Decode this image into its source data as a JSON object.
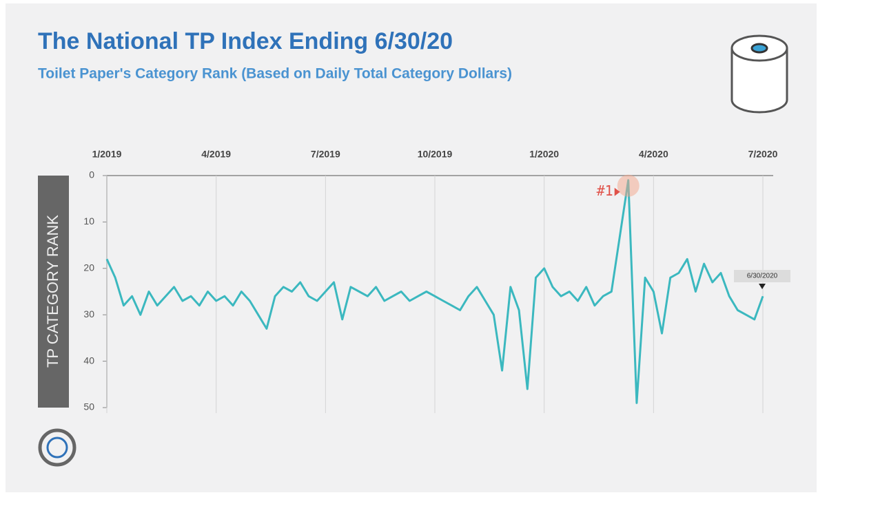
{
  "chart_data": {
    "type": "line",
    "title": "The National TP Index Ending 6/30/20",
    "subtitle": "Toilet Paper's Category Rank (Based on Daily Total Category Dollars)",
    "y_label": "TP CATEGORY RANK",
    "categories": [
      "1/2019",
      null,
      null,
      null,
      null,
      null,
      null,
      null,
      null,
      null,
      null,
      null,
      null,
      "4/2019",
      null,
      null,
      null,
      null,
      null,
      null,
      null,
      null,
      null,
      null,
      null,
      null,
      "7/2019",
      null,
      null,
      null,
      null,
      null,
      null,
      null,
      null,
      null,
      null,
      null,
      null,
      "10/2019",
      null,
      null,
      null,
      null,
      null,
      null,
      null,
      null,
      null,
      null,
      null,
      null,
      "1/2020",
      null,
      null,
      null,
      null,
      null,
      null,
      null,
      null,
      null,
      null,
      null,
      null,
      "4/2020",
      null,
      null,
      null,
      null,
      null,
      null,
      null,
      null,
      null,
      null,
      null,
      null,
      "7/2020"
    ],
    "series": [
      {
        "name": "TP Category Rank",
        "color": "#3bb8bf",
        "values": [
          18,
          22,
          28,
          26,
          30,
          25,
          28,
          26,
          24,
          27,
          26,
          28,
          25,
          27,
          26,
          28,
          25,
          27,
          30,
          33,
          26,
          24,
          25,
          23,
          26,
          27,
          25,
          23,
          31,
          24,
          25,
          26,
          24,
          27,
          26,
          25,
          27,
          26,
          25,
          26,
          27,
          28,
          29,
          26,
          24,
          27,
          30,
          42,
          24,
          29,
          46,
          22,
          20,
          24,
          26,
          25,
          27,
          24,
          28,
          26,
          25,
          13,
          1,
          49,
          22,
          25,
          34,
          22,
          21,
          18,
          25,
          19,
          23,
          21,
          26,
          29,
          30,
          31,
          26
        ]
      }
    ],
    "ylim": [
      50,
      0
    ],
    "yticks": [
      0,
      10,
      20,
      30,
      40,
      50
    ],
    "grid": true,
    "annotations": [
      "#1",
      "6/30/2020"
    ]
  }
}
